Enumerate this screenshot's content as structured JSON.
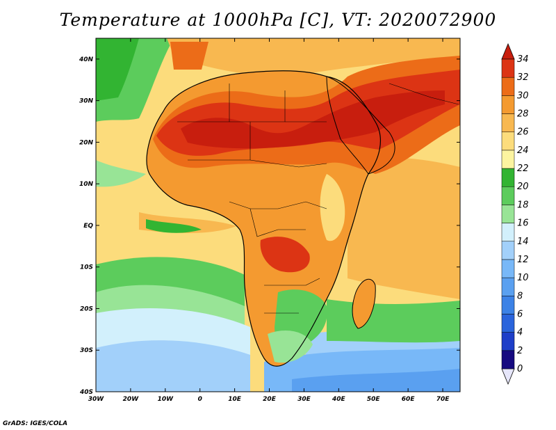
{
  "title": "Temperature at 1000hPa [C], VT: 2020072900",
  "credit": "GrADS: IGES/COLA",
  "map": {
    "lon_range": [
      -30,
      75
    ],
    "lat_range": [
      -40,
      45
    ],
    "lat_ticks": [
      {
        "value": 40,
        "label": "40N"
      },
      {
        "value": 30,
        "label": "30N"
      },
      {
        "value": 20,
        "label": "20N"
      },
      {
        "value": 10,
        "label": "10N"
      },
      {
        "value": 0,
        "label": "EQ"
      },
      {
        "value": -10,
        "label": "10S"
      },
      {
        "value": -20,
        "label": "20S"
      },
      {
        "value": -30,
        "label": "30S"
      },
      {
        "value": -40,
        "label": "40S"
      }
    ],
    "lon_ticks": [
      {
        "value": -30,
        "label": "30W"
      },
      {
        "value": -20,
        "label": "20W"
      },
      {
        "value": -10,
        "label": "10W"
      },
      {
        "value": 0,
        "label": "0"
      },
      {
        "value": 10,
        "label": "10E"
      },
      {
        "value": 20,
        "label": "20E"
      },
      {
        "value": 30,
        "label": "30E"
      },
      {
        "value": 40,
        "label": "40E"
      },
      {
        "value": 50,
        "label": "50E"
      },
      {
        "value": 60,
        "label": "60E"
      },
      {
        "value": 70,
        "label": "70E"
      }
    ]
  },
  "colorbar": {
    "levels": [
      0,
      2,
      4,
      6,
      8,
      10,
      12,
      14,
      16,
      18,
      20,
      22,
      24,
      26,
      28,
      30,
      32,
      34
    ],
    "colors": [
      "#160a80",
      "#1e3ec8",
      "#2a64dc",
      "#3c82e6",
      "#5aa0f0",
      "#78b8f8",
      "#a2d0fa",
      "#d2f0fc",
      "#98e496",
      "#5ccc5c",
      "#32b432",
      "#fcf4a0",
      "#fcdc7c",
      "#f8b850",
      "#f49a30",
      "#ec6c18",
      "#dc3414"
    ],
    "under_color": "#e6e6fa",
    "over_color": "#c81e0e"
  }
}
